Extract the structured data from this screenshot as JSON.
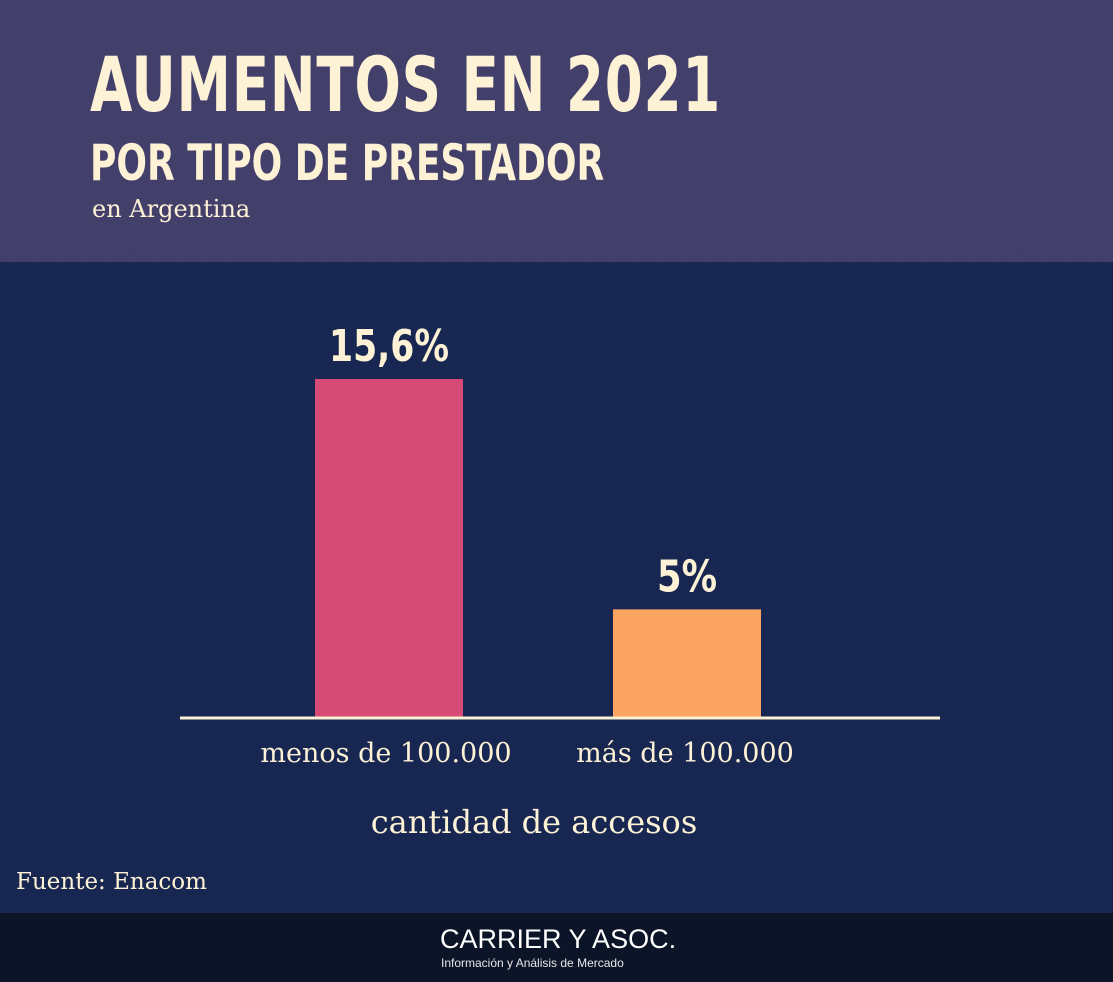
{
  "header": {
    "title": "AUMENTOS EN 2021",
    "subtitle": "POR TIPO DE PRESTADOR",
    "subtitle2": "en Argentina"
  },
  "chart_data": {
    "type": "bar",
    "categories": [
      "menos de 100.000",
      "más de 100.000"
    ],
    "values": [
      15.6,
      5
    ],
    "value_labels": [
      "15,6%",
      "5%"
    ],
    "xlabel": "cantidad de accesos",
    "ylabel": "",
    "ylim": [
      0,
      15.6
    ],
    "grid": false,
    "colors": [
      "#d64a77",
      "#fca462"
    ]
  },
  "source": "Fuente: Enacom",
  "footer": {
    "brand": "CARRIER Y ASOC.",
    "tagline": "Información y Análisis de Mercado"
  },
  "colors": {
    "header_bg": "#433f6b",
    "body_bg": "#172751",
    "footer_bg": "#0c1428",
    "text": "#fdf2d6"
  }
}
